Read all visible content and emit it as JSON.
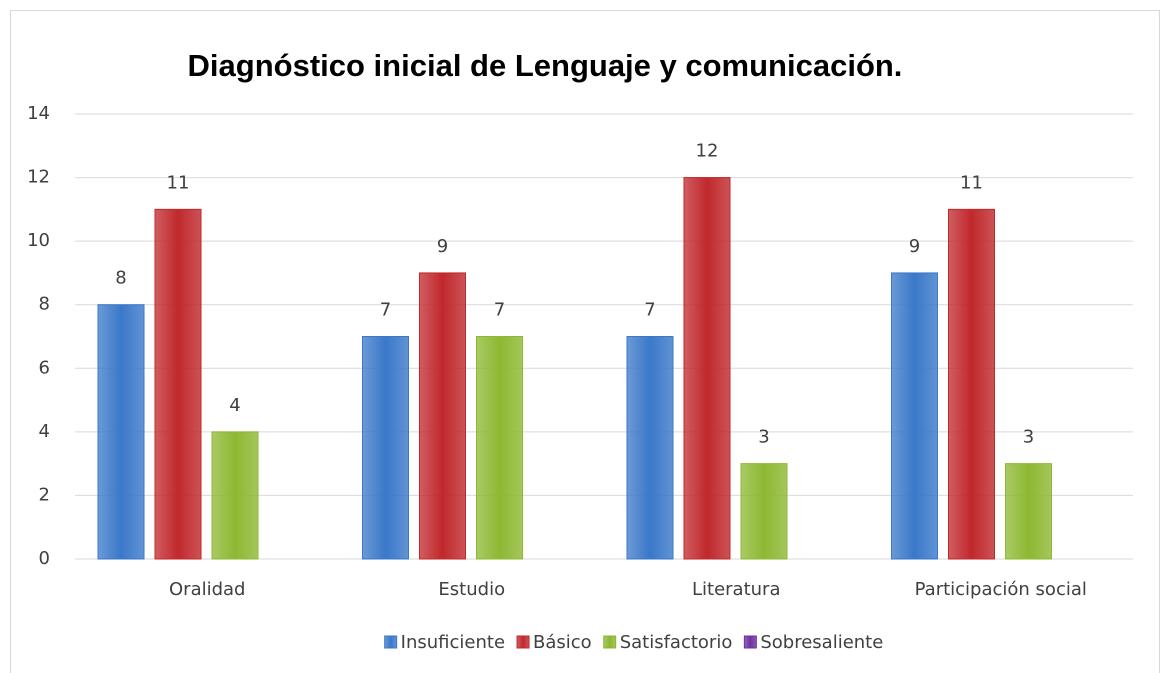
{
  "chart_data": {
    "type": "bar",
    "title": "Diagnóstico inicial de Lenguaje y comunicación.",
    "categories": [
      "Oralidad",
      "Estudio",
      "Literatura",
      "Participación social"
    ],
    "series": [
      {
        "name": "Insuficiente",
        "color": "#3a78c9",
        "values": [
          8,
          7,
          7,
          9
        ]
      },
      {
        "name": "Básico",
        "color": "#c0282c",
        "values": [
          11,
          9,
          12,
          11
        ]
      },
      {
        "name": "Satisfactorio",
        "color": "#8db832",
        "values": [
          4,
          7,
          3,
          3
        ]
      },
      {
        "name": "Sobresaliente",
        "color": "#7030a0",
        "values": [
          null,
          null,
          null,
          null
        ]
      }
    ],
    "ylim": [
      0,
      14
    ],
    "yticks": [
      0,
      2,
      4,
      6,
      8,
      10,
      12,
      14
    ],
    "grid": true,
    "legend": "bottom"
  }
}
